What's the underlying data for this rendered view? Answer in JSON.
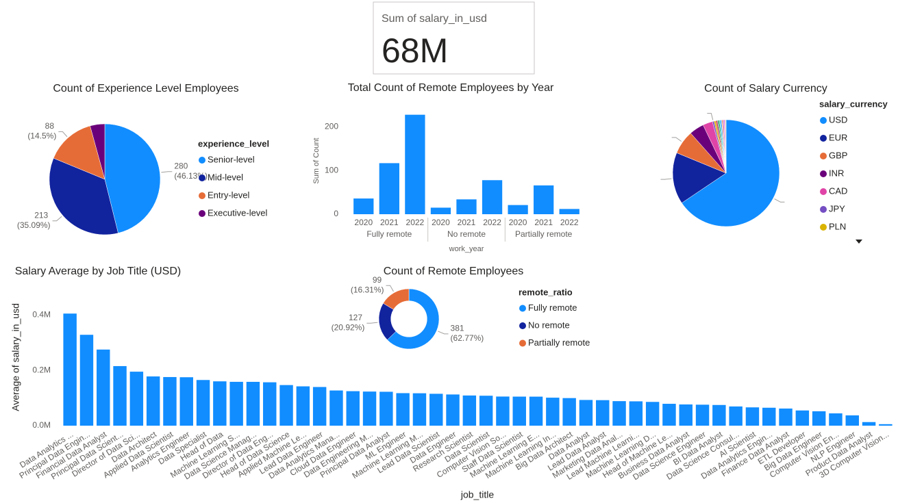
{
  "card": {
    "label": "Sum of salary_in_usd",
    "value": "68M"
  },
  "chart_data": [
    {
      "type": "pie",
      "title": "Count of Experience Level Employees",
      "legend_title": "experience_level",
      "categories": [
        "Senior-level",
        "Mid-level",
        "Entry-level",
        "Executive-level"
      ],
      "values": [
        280,
        213,
        88,
        26
      ],
      "value_labels": [
        "280 (46.13%)",
        "213 (35.09%)",
        "88 (14.5%)",
        null
      ],
      "colors": [
        "#118DFF",
        "#12239E",
        "#E66C37",
        "#6B007B"
      ]
    },
    {
      "type": "bar",
      "title": "Total Count of Remote Employees by Year",
      "ylabel": "Sum of Count",
      "xlabel": "work_year",
      "categories": [
        "2020",
        "2021",
        "2022",
        "2020",
        "2021",
        "2022",
        "2020",
        "2021",
        "2022"
      ],
      "groups": [
        "Fully remote",
        "No remote",
        "Partially remote"
      ],
      "values": [
        36,
        117,
        228,
        15,
        34,
        78,
        21,
        66,
        12
      ],
      "color": "#118DFF",
      "ylim": [
        0,
        240
      ],
      "yticks": [
        0,
        100,
        200
      ],
      "grid": false
    },
    {
      "type": "pie",
      "title": "Count of Salary Currency",
      "legend_title": "salary_currency",
      "categories": [
        "USD",
        "EUR",
        "GBP",
        "INR",
        "CAD",
        "JPY",
        "PLN",
        null,
        null,
        null,
        null,
        null,
        null,
        null,
        null,
        null,
        null
      ],
      "values": [
        398,
        95,
        44,
        27,
        18,
        3,
        3,
        3,
        2,
        2,
        2,
        2,
        2,
        2,
        2,
        1,
        1
      ],
      "value_labels": [
        "398 (65.57%)",
        "95 (15....)",
        "44 (7.25%)",
        null,
        null,
        "3 (0.49%)",
        null,
        null,
        null,
        null,
        null,
        null,
        null,
        null,
        null,
        null,
        null
      ],
      "colors": [
        "#118DFF",
        "#12239E",
        "#E66C37",
        "#6B007B",
        "#E044A7",
        "#744EC2",
        "#D9B300",
        "#D64550",
        "#197278",
        "#1AAB40",
        "#15C6F4",
        "#4092FF",
        "#FFA058",
        "#BE5DC9",
        "#F472D0",
        "#B5A1FF",
        "#C4A200"
      ]
    },
    {
      "type": "bar",
      "title": "Salary Average by Job Title (USD)",
      "ylabel": "Average of salary_in_usd",
      "xlabel": "job_title",
      "categories": [
        "Data Analytics ...",
        "Principal Data Engin...",
        "Financial Data Analyst",
        "Principal Data Scient...",
        "Director of Data Sci...",
        "Data Architect",
        "Applied Data Scientist",
        "Analytics Engineer",
        "Data Specialist",
        "Head of Data",
        "Machine Learning S...",
        "Data Science Manag...",
        "Director of Data Eng...",
        "Head of Data Science",
        "Applied Machine Le...",
        "Lead Data Engineer",
        "Data Analytics Mana...",
        "Cloud Data Engineer",
        "Data Engineering M...",
        "Principal Data Analyst",
        "ML Engineer",
        "Machine Learning M...",
        "Lead Data Scientist",
        "Data Engineer",
        "Research Scientist",
        "Data Scientist",
        "Computer Vision So...",
        "Staff Data Scientist",
        "Machine Learning E...",
        "Machine Learning In...",
        "Big Data Architect",
        "Data Analyst",
        "Lead Data Analyst",
        "Marketing Data Anal...",
        "Lead Machine Learni...",
        "Machine Learning D...",
        "Head of Machine Le...",
        "Business Data Analyst",
        "Data Science Engineer",
        "BI Data Analyst",
        "Data Science Consul...",
        "AI Scientist",
        "Data Analytics Engin...",
        "Finance Data Analyst",
        "ETL Developer",
        "Big Data Engineer",
        "Computer Vision En...",
        "NLP Engineer",
        "Product Data Analyst",
        "3D Computer Vision..."
      ],
      "values": [
        405000,
        328333,
        275000,
        215242,
        195074,
        177874,
        175655,
        175000,
        165000,
        160163,
        158412,
        158328,
        156738,
        146719,
        142069,
        139724,
        127134,
        124647,
        123227,
        122500,
        117504,
        117104,
        115190,
        112725,
        109020,
        108188,
        105248,
        105000,
        104880,
        101145,
        99703,
        92893,
        92203,
        88654,
        87932,
        85860,
        79039,
        76691,
        75803,
        74755,
        69420,
        66136,
        64799,
        61896,
        54957,
        51974,
        44419,
        37236,
        13036,
        5409
      ],
      "color": "#118DFF",
      "ylim": [
        0,
        450000
      ],
      "yticks": [
        {
          "value": 0,
          "label": "0.0M"
        },
        {
          "value": 200000,
          "label": "0.2M"
        },
        {
          "value": 400000,
          "label": "0.4M"
        }
      ],
      "grid": false
    },
    {
      "type": "donut",
      "title": "Count of Remote Employees",
      "legend_title": "remote_ratio",
      "categories": [
        "Fully remote",
        "No remote",
        "Partially remote"
      ],
      "values": [
        381,
        127,
        99
      ],
      "value_labels": [
        "381 (62.77%)",
        "127 (20.92%)",
        "99 (16.31%)"
      ],
      "colors": [
        "#118DFF",
        "#12239E",
        "#E66C37"
      ]
    }
  ]
}
